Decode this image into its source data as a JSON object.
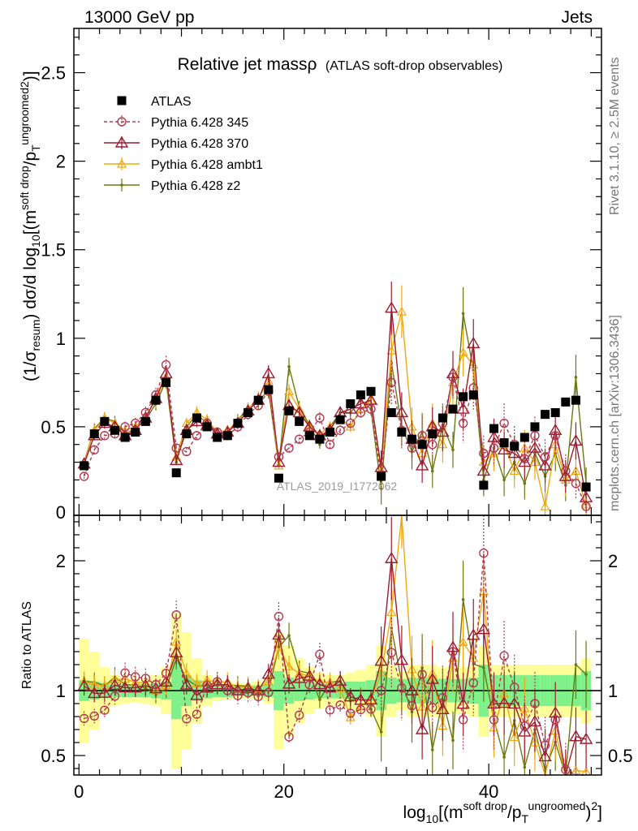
{
  "header": {
    "left": "13000 GeV pp",
    "right": "Jets"
  },
  "side_labels": {
    "rivet": "Rivet 3.1.10, ≥ 2.5M events",
    "mcplots": "mcplots.cern.ch [arXiv:1306.3436]"
  },
  "watermark": "ATLAS_2019_I1772062",
  "chart_data": {
    "type": "scatter",
    "title_main": "Relative jet massρ",
    "title_sub": "(ATLAS soft-drop observables)",
    "ylabel": "(1/σresum) dσ/d log10[(msoft drop/pTungroomed)2)]",
    "ylabel_ratio": "Ratio to ATLAS",
    "xlabel": "log10[(msoft drop/pTungroomed)2]",
    "xlim": [
      -0.5,
      51
    ],
    "ylim": [
      0,
      2.75
    ],
    "ylim_ratio": [
      0.35,
      2.35
    ],
    "x_ticks": [
      0,
      20,
      40
    ],
    "y_ticks": [
      0.5,
      1,
      1.5,
      2,
      2.5
    ],
    "y_tick_labels": [
      "0.5",
      "1",
      "1.5",
      "2",
      "2.5"
    ],
    "y_zero_label": "0",
    "ratio_ticks": [
      0.5,
      1,
      2
    ],
    "ratio_tick_labels": [
      "0.5",
      "1",
      "2"
    ],
    "colors": {
      "atlas": "#000000",
      "p345": "#b03a50",
      "p370": "#9b1b30",
      "ambt1": "#f0a810",
      "z2": "#6b7a10",
      "band_inner": "#7ff08a",
      "band_outer": "#ffff99"
    },
    "x": [
      0.5,
      1.5,
      2.5,
      3.5,
      4.5,
      5.5,
      6.5,
      7.5,
      8.5,
      9.5,
      10.5,
      11.5,
      12.5,
      13.5,
      14.5,
      15.5,
      16.5,
      17.5,
      18.5,
      19.5,
      20.5,
      21.5,
      22.5,
      23.5,
      24.5,
      25.5,
      26.5,
      27.5,
      28.5,
      29.5,
      30.5,
      31.5,
      32.5,
      33.5,
      34.5,
      35.5,
      36.5,
      37.5,
      38.5,
      39.5,
      40.5,
      41.5,
      42.5,
      43.5,
      44.5,
      45.5,
      46.5,
      47.5,
      48.5,
      49.5
    ],
    "series": [
      {
        "name": "ATLAS",
        "key": "atlas",
        "values": [
          0.28,
          0.46,
          0.53,
          0.48,
          0.44,
          0.47,
          0.53,
          0.65,
          0.75,
          0.24,
          0.46,
          0.55,
          0.5,
          0.44,
          0.45,
          0.52,
          0.58,
          0.65,
          0.71,
          0.21,
          0.59,
          0.53,
          0.45,
          0.43,
          0.47,
          0.54,
          0.63,
          0.68,
          0.7,
          0.22,
          0.58,
          0.47,
          0.43,
          0.4,
          0.46,
          0.55,
          0.6,
          0.67,
          0.68,
          0.17,
          0.49,
          0.41,
          0.39,
          0.44,
          0.5,
          0.57,
          0.58,
          0.64,
          0.65,
          0.16
        ]
      },
      {
        "name": "Pythia 6.428 345",
        "key": "p345",
        "values": [
          0.22,
          0.37,
          0.45,
          0.46,
          0.5,
          0.52,
          0.58,
          0.68,
          0.85,
          0.38,
          0.36,
          0.45,
          0.52,
          0.47,
          0.45,
          0.5,
          0.57,
          0.62,
          0.7,
          0.33,
          0.38,
          0.43,
          0.47,
          0.55,
          0.4,
          0.48,
          0.52,
          0.58,
          0.6,
          0.22,
          0.75,
          0.48,
          0.38,
          0.45,
          0.4,
          0.52,
          0.78,
          0.52,
          0.72,
          0.35,
          0.38,
          0.52,
          0.4,
          0.32,
          0.45,
          0.33,
          0.45,
          0.25,
          0.18,
          0.05
        ]
      },
      {
        "name": "Pythia 6.428 370",
        "key": "p370",
        "values": [
          0.29,
          0.45,
          0.52,
          0.5,
          0.45,
          0.48,
          0.55,
          0.66,
          0.8,
          0.31,
          0.48,
          0.53,
          0.51,
          0.46,
          0.47,
          0.52,
          0.59,
          0.65,
          0.8,
          0.3,
          0.62,
          0.58,
          0.5,
          0.45,
          0.48,
          0.58,
          0.6,
          0.63,
          0.65,
          0.27,
          1.17,
          0.58,
          0.43,
          0.28,
          0.5,
          0.47,
          0.8,
          0.6,
          0.97,
          0.25,
          0.44,
          0.37,
          0.35,
          0.3,
          0.38,
          0.28,
          0.48,
          0.22,
          0.42,
          0.1
        ]
      },
      {
        "name": "Pythia 6.428 ambt1",
        "key": "ambt1",
        "values": [
          0.3,
          0.48,
          0.55,
          0.52,
          0.48,
          0.5,
          0.56,
          0.65,
          0.78,
          0.33,
          0.52,
          0.58,
          0.54,
          0.47,
          0.48,
          0.53,
          0.6,
          0.66,
          0.76,
          0.28,
          0.7,
          0.6,
          0.5,
          0.46,
          0.5,
          0.55,
          0.5,
          0.6,
          0.65,
          0.25,
          0.93,
          1.15,
          0.5,
          0.35,
          0.52,
          0.4,
          0.75,
          0.92,
          0.85,
          0.3,
          0.35,
          0.4,
          0.25,
          0.38,
          0.3,
          0.05,
          0.4,
          0.2,
          0.25,
          0.06
        ]
      },
      {
        "name": "Pythia 6.428 z2",
        "key": "z2",
        "values": [
          0.3,
          0.49,
          0.55,
          0.53,
          0.46,
          0.49,
          0.54,
          0.63,
          0.76,
          0.3,
          0.5,
          0.57,
          0.52,
          0.46,
          0.47,
          0.54,
          0.6,
          0.64,
          0.71,
          0.28,
          0.84,
          0.61,
          0.51,
          0.4,
          0.5,
          0.58,
          0.58,
          0.65,
          0.6,
          0.15,
          0.86,
          0.5,
          0.36,
          0.47,
          0.25,
          0.51,
          0.37,
          1.14,
          0.82,
          0.2,
          0.38,
          0.2,
          0.3,
          0.18,
          0.35,
          0.22,
          0.35,
          0.17,
          0.78,
          0.18
        ]
      }
    ],
    "band_inner_rel": [
      0.08,
      0.07,
      0.06,
      0.05,
      0.05,
      0.05,
      0.05,
      0.06,
      0.07,
      0.22,
      0.12,
      0.08,
      0.06,
      0.05,
      0.05,
      0.04,
      0.04,
      0.04,
      0.05,
      0.15,
      0.1,
      0.08,
      0.07,
      0.06,
      0.06,
      0.06,
      0.07,
      0.07,
      0.08,
      0.15,
      0.1,
      0.09,
      0.1,
      0.1,
      0.1,
      0.09,
      0.09,
      0.09,
      0.1,
      0.2,
      0.12,
      0.12,
      0.12,
      0.12,
      0.12,
      0.12,
      0.12,
      0.12,
      0.12,
      0.15
    ],
    "band_outer_rel": [
      0.4,
      0.3,
      0.18,
      0.12,
      0.1,
      0.09,
      0.1,
      0.12,
      0.18,
      0.6,
      0.45,
      0.25,
      0.12,
      0.08,
      0.07,
      0.06,
      0.06,
      0.07,
      0.1,
      0.45,
      0.35,
      0.25,
      0.18,
      0.14,
      0.12,
      0.12,
      0.14,
      0.16,
      0.2,
      0.35,
      0.2,
      0.15,
      0.2,
      0.2,
      0.2,
      0.18,
      0.18,
      0.18,
      0.2,
      0.35,
      0.2,
      0.2,
      0.2,
      0.2,
      0.2,
      0.2,
      0.2,
      0.2,
      0.2,
      0.25
    ]
  }
}
